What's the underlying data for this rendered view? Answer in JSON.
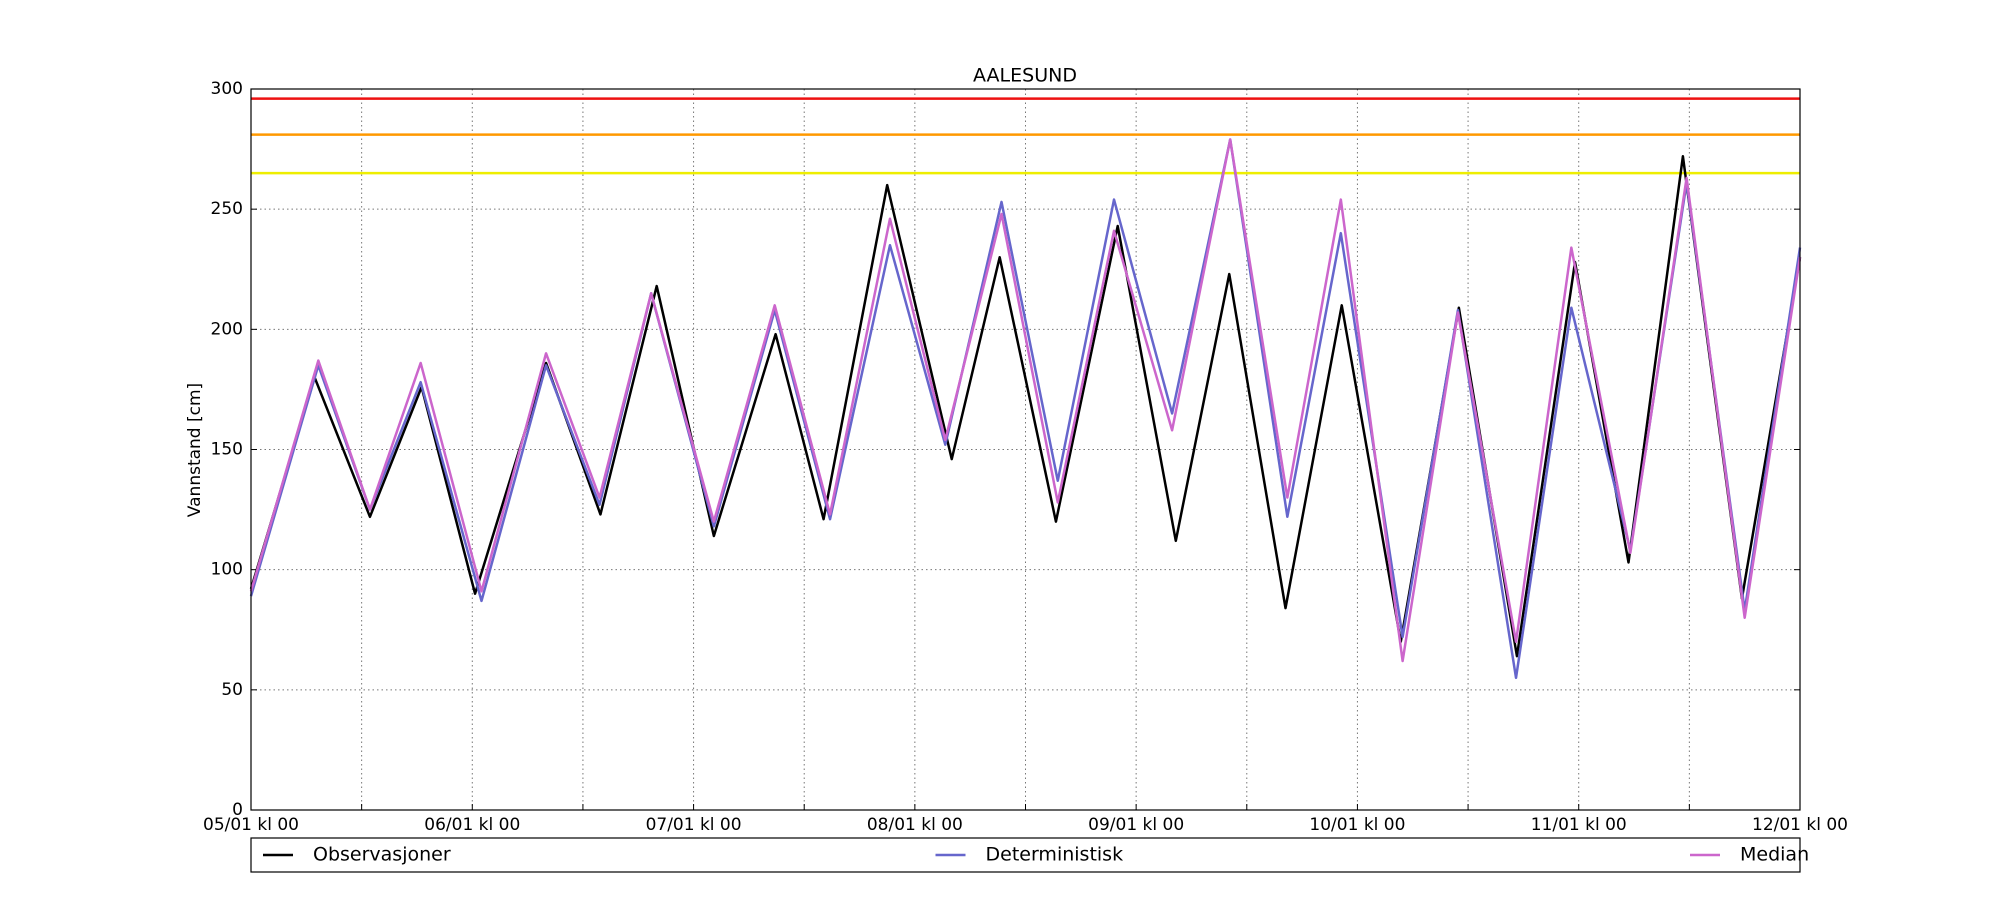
{
  "chart_data": {
    "type": "line",
    "title": "AALESUND",
    "ylabel": "Vannstand [cm]",
    "xlim": [
      0,
      168
    ],
    "ylim": [
      0,
      300
    ],
    "yticks": [
      0,
      50,
      100,
      150,
      200,
      250,
      300
    ],
    "xticks": [
      {
        "value": 0,
        "label": "05/01 kl 00"
      },
      {
        "value": 24,
        "label": "06/01 kl 00"
      },
      {
        "value": 48,
        "label": "07/01 kl 00"
      },
      {
        "value": 72,
        "label": "08/01 kl 00"
      },
      {
        "value": 96,
        "label": "09/01 kl 00"
      },
      {
        "value": 120,
        "label": "10/01 kl 00"
      },
      {
        "value": 144,
        "label": "11/01 kl 00"
      },
      {
        "value": 168,
        "label": "12/01 kl 00"
      }
    ],
    "xminor_ticks": [
      12,
      36,
      60,
      84,
      108,
      132,
      156
    ],
    "grid": true,
    "reference_lines": [
      {
        "value": 296,
        "color": "#ee1111"
      },
      {
        "value": 281,
        "color": "#ff9900"
      },
      {
        "value": 265,
        "color": "#eeee00"
      }
    ],
    "series": [
      {
        "name": "Observasjoner",
        "color": "#000000",
        "x": [
          0,
          6.9,
          12.9,
          18.5,
          24.3,
          32,
          37.9,
          44,
          50.2,
          56.9,
          62.1,
          69,
          76,
          81.2,
          87.3,
          94,
          100.3,
          106.1,
          112.2,
          118.3,
          124.7,
          131,
          137.3,
          143.6,
          149.4,
          155.3,
          161.7,
          168
        ],
        "values": [
          92,
          180,
          122,
          176,
          90,
          186,
          123,
          218,
          114,
          198,
          121,
          260,
          146,
          230,
          120,
          243,
          112,
          223,
          84,
          210,
          70,
          209,
          64,
          228,
          103,
          272,
          88,
          230
        ]
      },
      {
        "name": "Deterministisk",
        "color": "#6666cc",
        "x": [
          0,
          7.3,
          12.9,
          18.4,
          25,
          32,
          37.8,
          43.4,
          50.2,
          56.8,
          62.8,
          69.3,
          75.3,
          81.4,
          87.5,
          93.6,
          99.9,
          106.2,
          112.4,
          118.2,
          124.9,
          130.9,
          137.2,
          143.2,
          149.6,
          155.7,
          162,
          168
        ],
        "values": [
          89,
          185,
          125,
          178,
          87,
          185,
          127,
          215,
          118,
          208,
          121,
          235,
          152,
          253,
          137,
          254,
          165,
          279,
          122,
          240,
          72,
          208,
          55,
          209,
          108,
          261,
          83,
          234
        ]
      },
      {
        "name": "Median",
        "color": "#cc66cc",
        "x": [
          0,
          7.3,
          12.9,
          18.4,
          25,
          32,
          37.8,
          43.4,
          50.2,
          56.8,
          62.8,
          69.3,
          75.3,
          81.4,
          87.5,
          93.6,
          99.9,
          106.2,
          112.4,
          118.2,
          124.9,
          130.9,
          137.2,
          143.2,
          149.6,
          155.7,
          162,
          168
        ],
        "values": [
          91,
          187,
          125,
          186,
          91,
          190,
          130,
          215,
          120,
          210,
          123,
          246,
          154,
          248,
          128,
          241,
          158,
          279,
          130,
          254,
          62,
          207,
          70,
          234,
          107,
          263,
          80,
          230
        ]
      }
    ]
  }
}
